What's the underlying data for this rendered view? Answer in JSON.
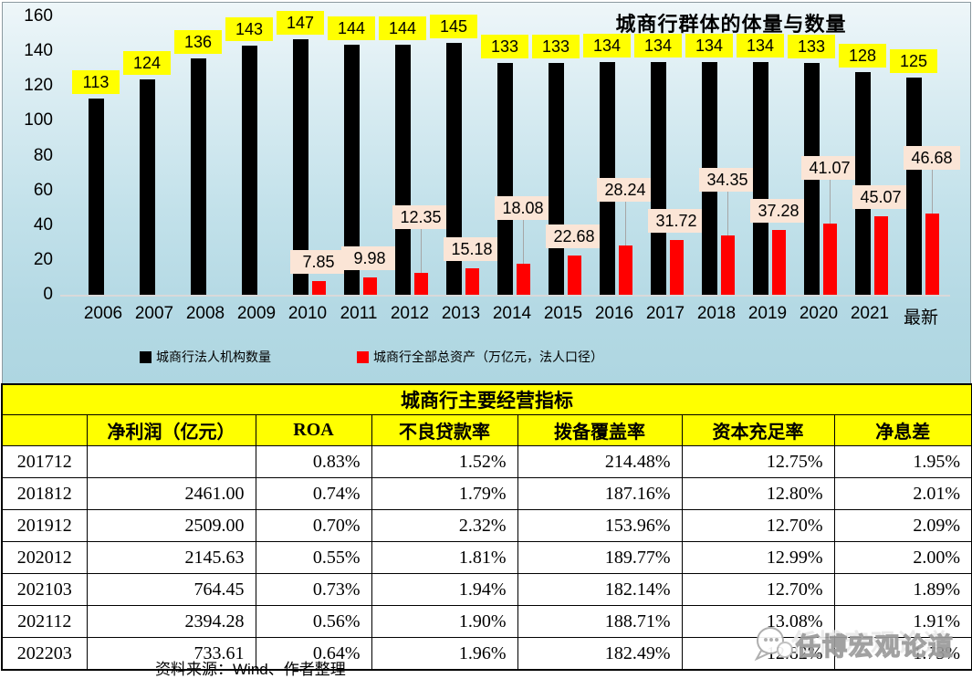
{
  "chart_data": {
    "type": "bar",
    "title": "城商行群体的体量与数量",
    "categories": [
      "2006",
      "2007",
      "2008",
      "2009",
      "2010",
      "2011",
      "2012",
      "2013",
      "2014",
      "2015",
      "2016",
      "2017",
      "2018",
      "2019",
      "2020",
      "2021",
      "最新"
    ],
    "series": [
      {
        "name": "城商行法人机构数量",
        "color": "#000000",
        "label_bg": "#ffff00",
        "values": [
          113,
          124,
          136,
          143,
          147,
          144,
          144,
          145,
          133,
          133,
          134,
          134,
          134,
          134,
          133,
          128,
          125
        ]
      },
      {
        "name": "城商行全部总资产（万亿元，法人口径）",
        "color": "#ff0000",
        "label_bg": "#fbe5d6",
        "values": [
          null,
          null,
          null,
          null,
          7.85,
          9.98,
          12.35,
          15.18,
          18.08,
          22.68,
          28.24,
          31.72,
          34.35,
          37.28,
          41.07,
          45.07,
          46.68
        ],
        "label_raised": [
          null,
          null,
          null,
          null,
          false,
          false,
          true,
          false,
          true,
          false,
          true,
          false,
          true,
          false,
          true,
          false,
          true
        ]
      }
    ],
    "ylim": [
      0,
      160
    ],
    "yticks": [
      0,
      20,
      40,
      60,
      80,
      100,
      120,
      140,
      160
    ],
    "grid": false,
    "legend_position": "bottom"
  },
  "table": {
    "title": "城商行主要经营指标",
    "columns": [
      "",
      "净利润（亿元）",
      "ROA",
      "不良贷款率",
      "拨备覆盖率",
      "资本充足率",
      "净息差"
    ],
    "rows": [
      [
        "201712",
        "",
        "0.83%",
        "1.52%",
        "214.48%",
        "12.75%",
        "1.95%"
      ],
      [
        "201812",
        "2461.00",
        "0.74%",
        "1.79%",
        "187.16%",
        "12.80%",
        "2.01%"
      ],
      [
        "201912",
        "2509.00",
        "0.70%",
        "2.32%",
        "153.96%",
        "12.70%",
        "2.09%"
      ],
      [
        "202012",
        "2145.63",
        "0.55%",
        "1.81%",
        "189.77%",
        "12.99%",
        "2.00%"
      ],
      [
        "202103",
        "764.45",
        "0.73%",
        "1.94%",
        "182.14%",
        "12.70%",
        "1.89%"
      ],
      [
        "202112",
        "2394.28",
        "0.56%",
        "1.90%",
        "188.71%",
        "13.08%",
        "1.91%"
      ],
      [
        "202203",
        "733.61",
        "0.64%",
        "1.96%",
        "182.49%",
        "12.82%",
        "1.73%"
      ]
    ]
  },
  "footer": {
    "source": "资料来源：Wind、作者整理"
  },
  "watermark": {
    "text": "任博宏观论道",
    "icon": "chat-bubble-icon"
  },
  "colors": {
    "chart_bg_top": "#eef6f9",
    "chart_bg_bottom": "#aed6e1",
    "bar_black": "#000000",
    "bar_red": "#ff0000",
    "count_label_bg": "#ffff00",
    "asset_label_bg": "#fbe5d6",
    "table_header_bg": "#ffff00",
    "leader_line": "#a6a6a6"
  }
}
